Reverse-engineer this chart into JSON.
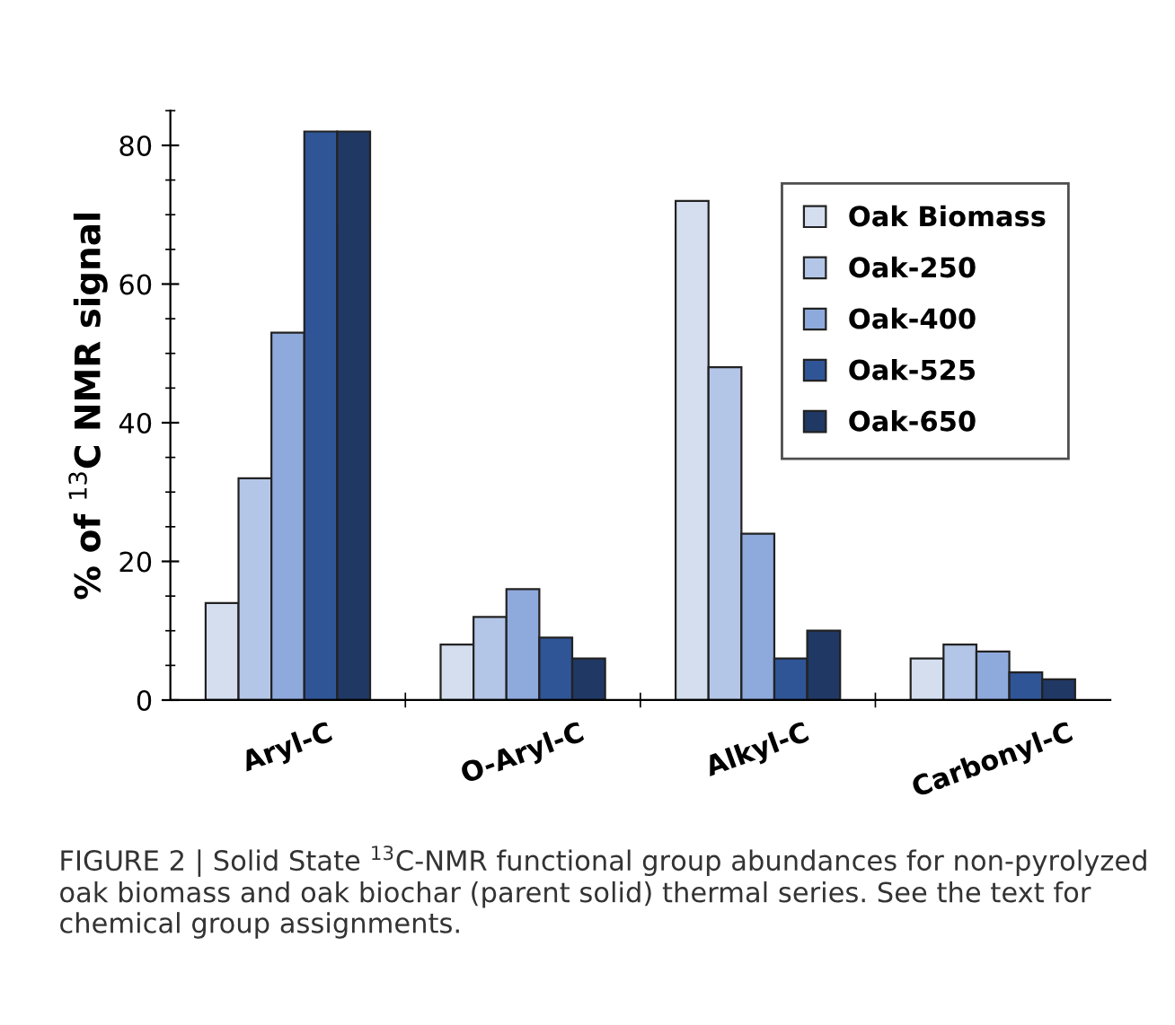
{
  "chart_data": {
    "type": "bar",
    "ylabel": "% of $^{13}$C NMR signal",
    "categories": [
      "Aryl-C",
      "O-Aryl-C",
      "Alkyl-C",
      "Carbonyl-C"
    ],
    "series": [
      {
        "name": "Oak Biomass",
        "color": "#d4deef",
        "values": [
          14,
          8,
          72,
          6
        ]
      },
      {
        "name": "Oak-250",
        "color": "#b4c6e7",
        "values": [
          32,
          12,
          48,
          8
        ]
      },
      {
        "name": "Oak-400",
        "color": "#8eaadc",
        "values": [
          53,
          16,
          24,
          7
        ]
      },
      {
        "name": "Oak-525",
        "color": "#2f5597",
        "values": [
          82,
          9,
          6,
          4
        ]
      },
      {
        "name": "Oak-650",
        "color": "#203864",
        "values": [
          82,
          6,
          10,
          3
        ]
      }
    ],
    "ylim": [
      0,
      85
    ],
    "yticks": [
      0,
      20,
      40,
      60,
      80
    ],
    "grid": false,
    "legend": "top right",
    "annotations": [
      "FIGURE 2 | Solid State $^{13}$C-NMR functional group abundances for non-pyrolyzed oak biomass and oak biochar (parent solid) thermal series. See the text for chemical group assignments."
    ]
  }
}
